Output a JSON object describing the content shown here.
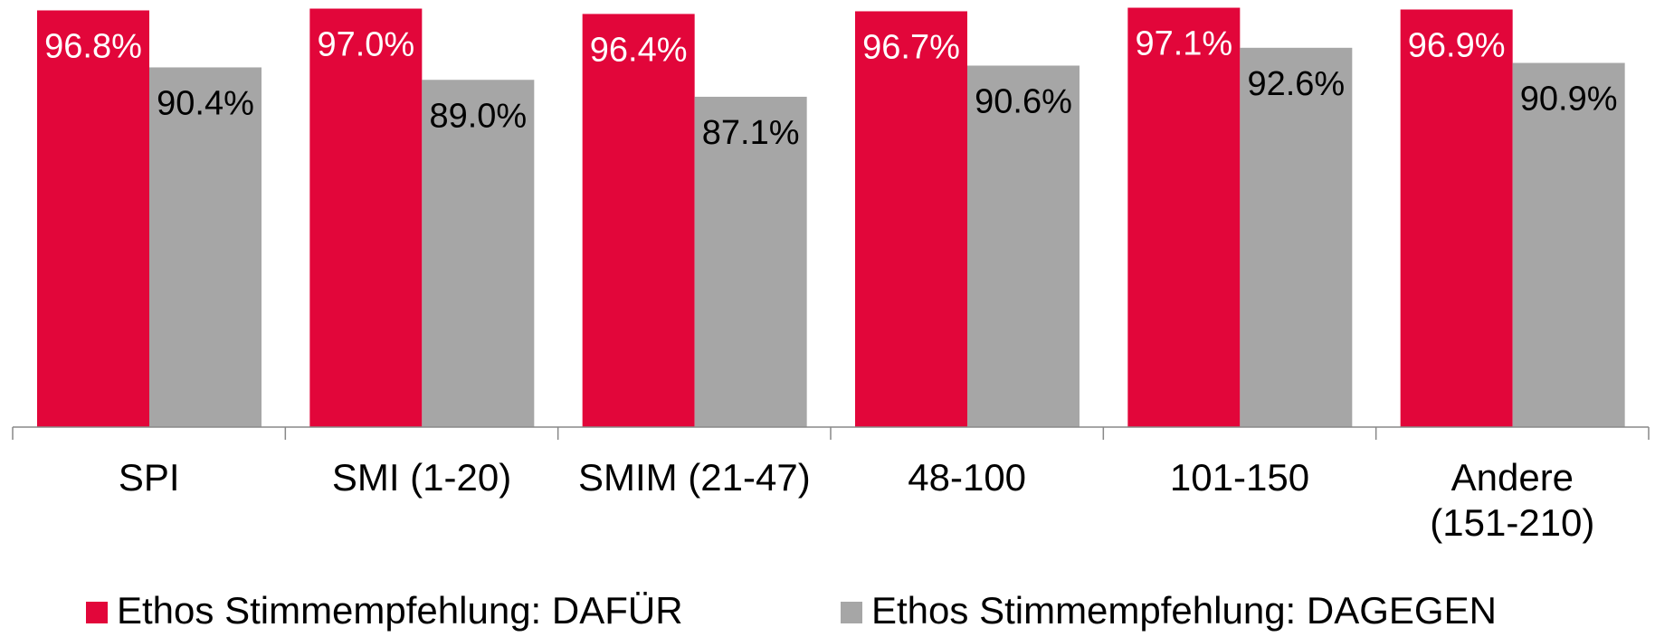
{
  "chart_data": {
    "type": "bar",
    "categories": [
      "SPI",
      "SMI (1-20)",
      "SMIM (21-47)",
      "48-100",
      "101-150",
      "Andere\n(151-210)"
    ],
    "series": [
      {
        "name": "Ethos Stimmempfehlung: DAFÜR",
        "color": "#e2063a",
        "values": [
          96.8,
          97.0,
          96.4,
          96.7,
          97.1,
          96.9
        ],
        "value_labels": [
          "96.8%",
          "97.0%",
          "96.4%",
          "96.7%",
          "97.1%",
          "96.9%"
        ],
        "label_color": "#ffffff"
      },
      {
        "name": "Ethos Stimmempfehlung: DAGEGEN",
        "color": "#a6a6a6",
        "values": [
          90.4,
          89.0,
          87.1,
          90.6,
          92.6,
          90.9
        ],
        "value_labels": [
          "90.4%",
          "89.0%",
          "87.1%",
          "90.6%",
          "92.6%",
          "90.9%"
        ],
        "label_color": "#000000"
      }
    ],
    "ylim": [
      50,
      100
    ],
    "legend": "bottom"
  }
}
